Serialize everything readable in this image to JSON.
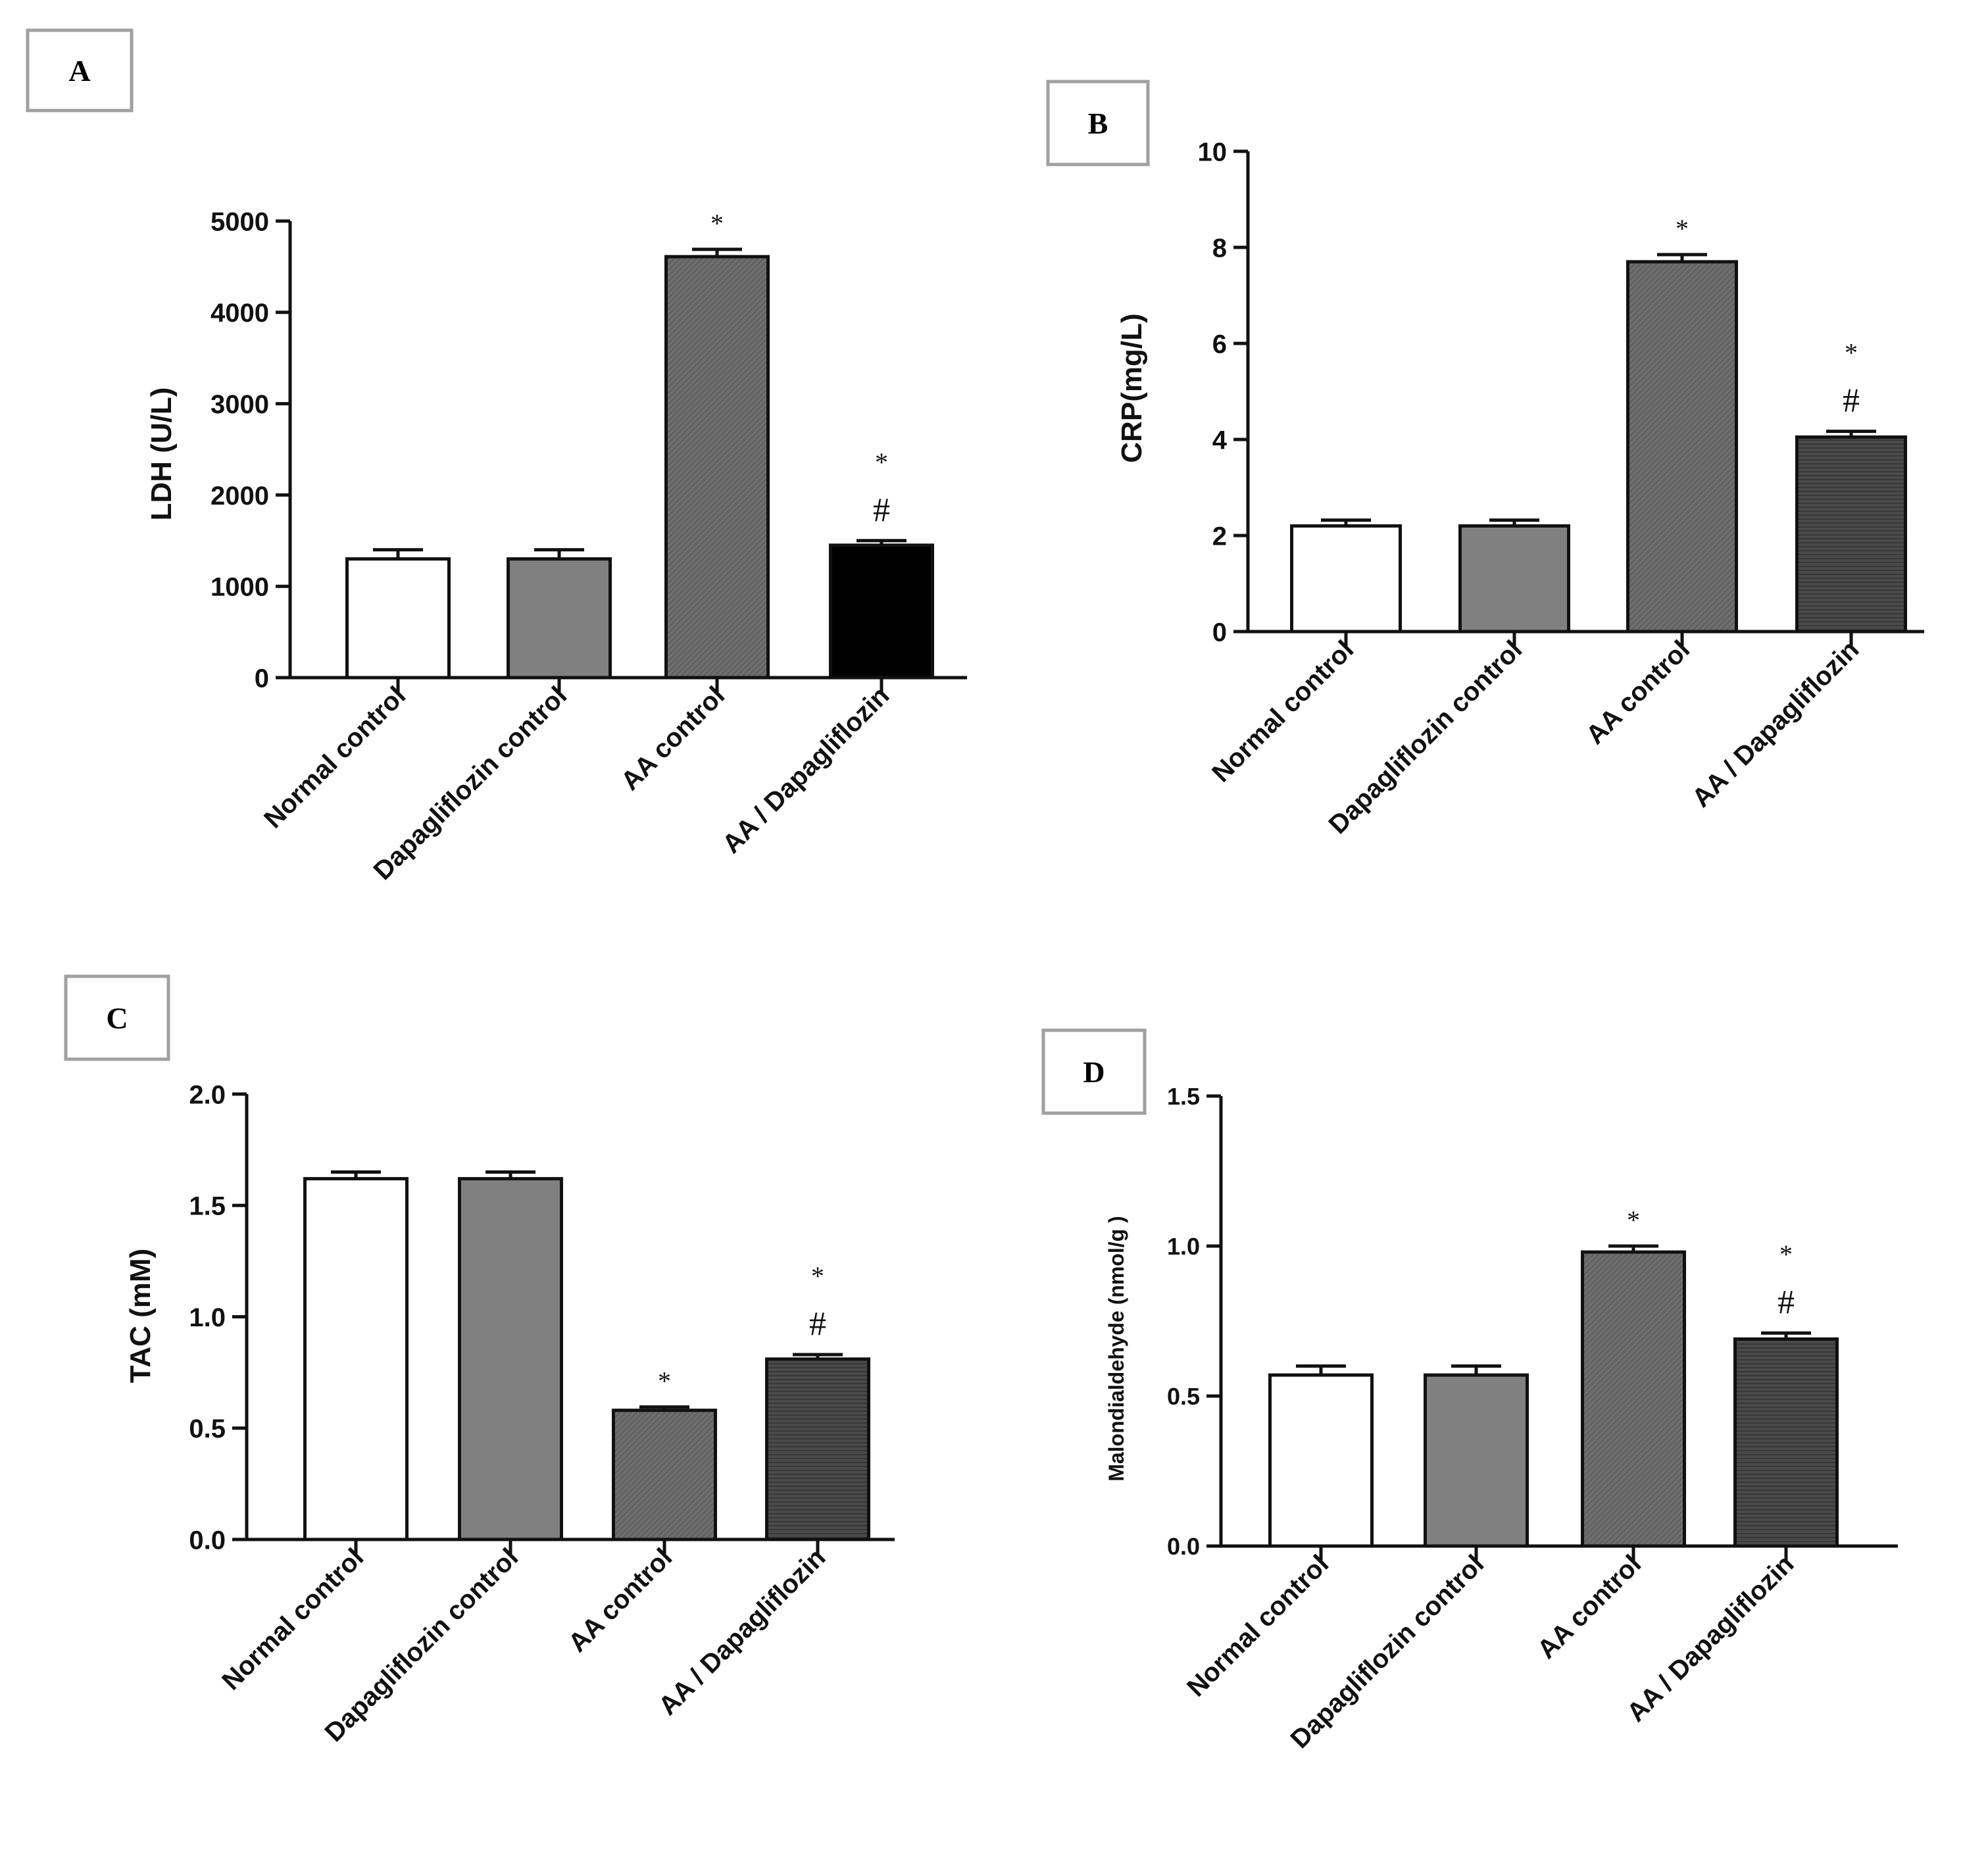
{
  "figure_title": "",
  "colors": {
    "axis": "#111111",
    "normal_fill": "#ffffff",
    "dapa_fill": "#808080",
    "aa_fill": "#707070",
    "aa_dapa_fill": "#4a4a4a",
    "aa_dapa_fill_A": "#000000",
    "label_box_border": "#a0a0a0"
  },
  "chart_data": [
    {
      "panel": "A",
      "type": "bar",
      "title": "",
      "ylabel": "LDH (U/L)",
      "xlabel": "",
      "ylim": [
        0,
        5000
      ],
      "yticks": [
        0,
        1000,
        2000,
        3000,
        4000,
        5000
      ],
      "ytick_labels": [
        "0",
        "1000",
        "2000",
        "3000",
        "4000",
        "5000"
      ],
      "categories": [
        "Normal control",
        "Dapagliflozin control",
        "AA control",
        "AA / Dapagliflozin"
      ],
      "values": [
        1300,
        1300,
        4610,
        1450
      ],
      "errors": [
        100,
        100,
        80,
        50
      ],
      "significance": [
        [],
        [],
        [
          "*"
        ],
        [
          "*",
          "#"
        ]
      ]
    },
    {
      "panel": "B",
      "type": "bar",
      "title": "",
      "ylabel": "CRP(mg/L)",
      "xlabel": "",
      "ylim": [
        0,
        10
      ],
      "yticks": [
        0,
        2,
        4,
        6,
        8,
        10
      ],
      "ytick_labels": [
        "0",
        "2",
        "4",
        "6",
        "8",
        "10"
      ],
      "categories": [
        "Normal control",
        "Dapagliflozin control",
        "AA control",
        "AA / Dapagliflozin"
      ],
      "values": [
        2.2,
        2.2,
        7.7,
        4.05
      ],
      "errors": [
        0.12,
        0.12,
        0.15,
        0.12
      ],
      "significance": [
        [],
        [],
        [
          "*"
        ],
        [
          "*",
          "#"
        ]
      ]
    },
    {
      "panel": "C",
      "type": "bar",
      "title": "",
      "ylabel": "TAC (mM)",
      "xlabel": "",
      "ylim": [
        0,
        2.0
      ],
      "yticks": [
        0,
        0.5,
        1.0,
        1.5,
        2.0
      ],
      "ytick_labels": [
        "0.0",
        "0.5",
        "1.0",
        "1.5",
        "2.0"
      ],
      "categories": [
        "Normal control",
        "Dapagliflozin control",
        "AA control",
        "AA / Dapagliflozin"
      ],
      "values": [
        1.62,
        1.62,
        0.58,
        0.81
      ],
      "errors": [
        0.03,
        0.03,
        0.015,
        0.02
      ],
      "significance": [
        [],
        [],
        [
          "*"
        ],
        [
          "*",
          "#"
        ]
      ]
    },
    {
      "panel": "D",
      "type": "bar",
      "title": "",
      "ylabel": "Malondialdehyde (nmol/g  )",
      "xlabel": "",
      "ylim": [
        0,
        1.5
      ],
      "yticks": [
        0,
        0.5,
        1.0,
        1.5
      ],
      "ytick_labels": [
        "0.0",
        "0.5",
        "1.0",
        "1.5"
      ],
      "categories": [
        "Normal control",
        "Dapagliflozin control",
        "AA control",
        "AA / Dapagliflozin"
      ],
      "values": [
        0.57,
        0.57,
        0.98,
        0.69
      ],
      "errors": [
        0.03,
        0.03,
        0.02,
        0.02
      ],
      "significance": [
        [],
        [],
        [
          "*"
        ],
        [
          "*",
          "#"
        ]
      ]
    }
  ]
}
